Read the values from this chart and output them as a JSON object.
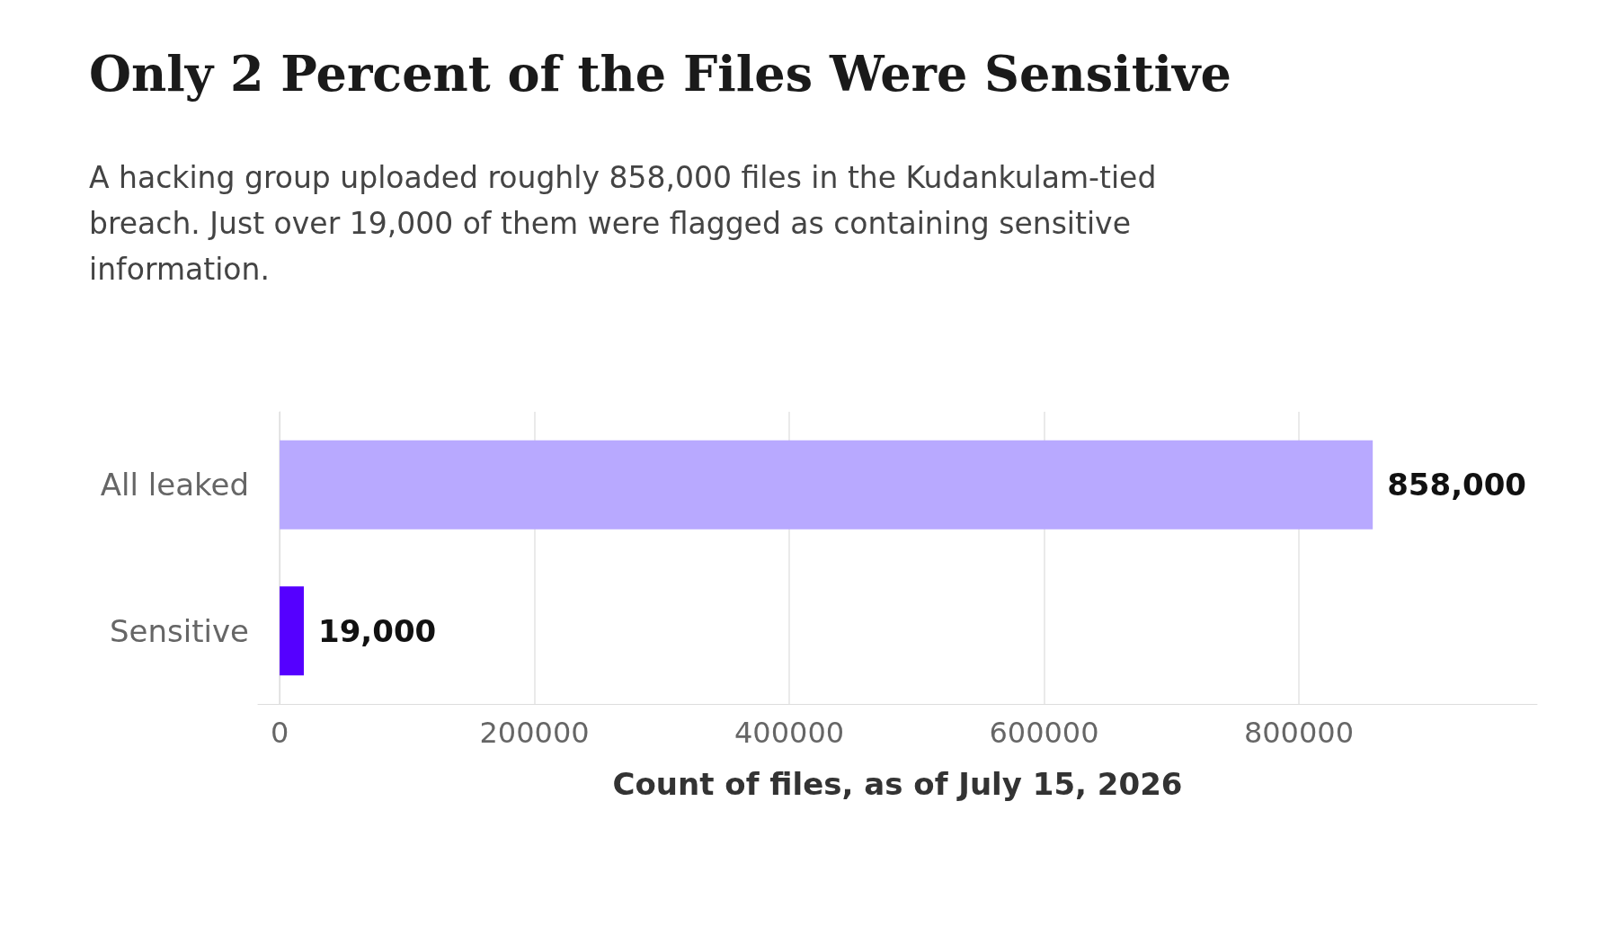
{
  "chart_data": {
    "type": "bar",
    "orientation": "horizontal",
    "title": "Only 2 Percent of the Files Were Sensitive",
    "subtitle": "A hacking group uploaded roughly 858,000 files in the Kudankulam-tied breach. Just over 19,000 of them were flagged as containing sensitive information.",
    "xlabel": "Count of files, as of July 15, 2026",
    "categories": [
      "All leaked",
      "Sensitive"
    ],
    "values": [
      858000,
      19000
    ],
    "colors": [
      "#b8a9ff",
      "#5500ff"
    ],
    "value_labels": [
      "858,000",
      "19,000"
    ],
    "xlim": [
      -17000,
      987000
    ],
    "xticks": [
      0,
      200000,
      400000,
      600000,
      800000
    ],
    "grid": "x"
  }
}
